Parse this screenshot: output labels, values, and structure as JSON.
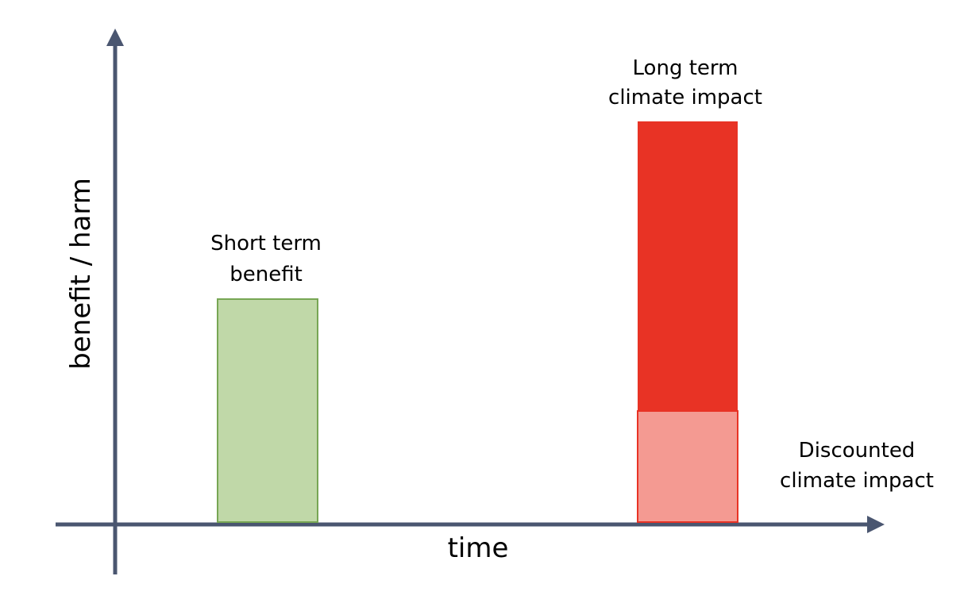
{
  "axes": {
    "y_label": "benefit / harm",
    "x_label": "time",
    "color": "#4a5670"
  },
  "short_term_benefit": {
    "label_lines": [
      "Short term",
      "benefit"
    ],
    "fill": "#c0d8a8",
    "stroke": "#77a654"
  },
  "long_term_impact": {
    "label_lines": [
      "Long term",
      "climate impact"
    ],
    "fill": "#e83325"
  },
  "discounted_impact": {
    "label_lines": [
      "Discounted",
      "climate impact"
    ],
    "fill": "#f49a92",
    "stroke": "#e83325"
  }
}
